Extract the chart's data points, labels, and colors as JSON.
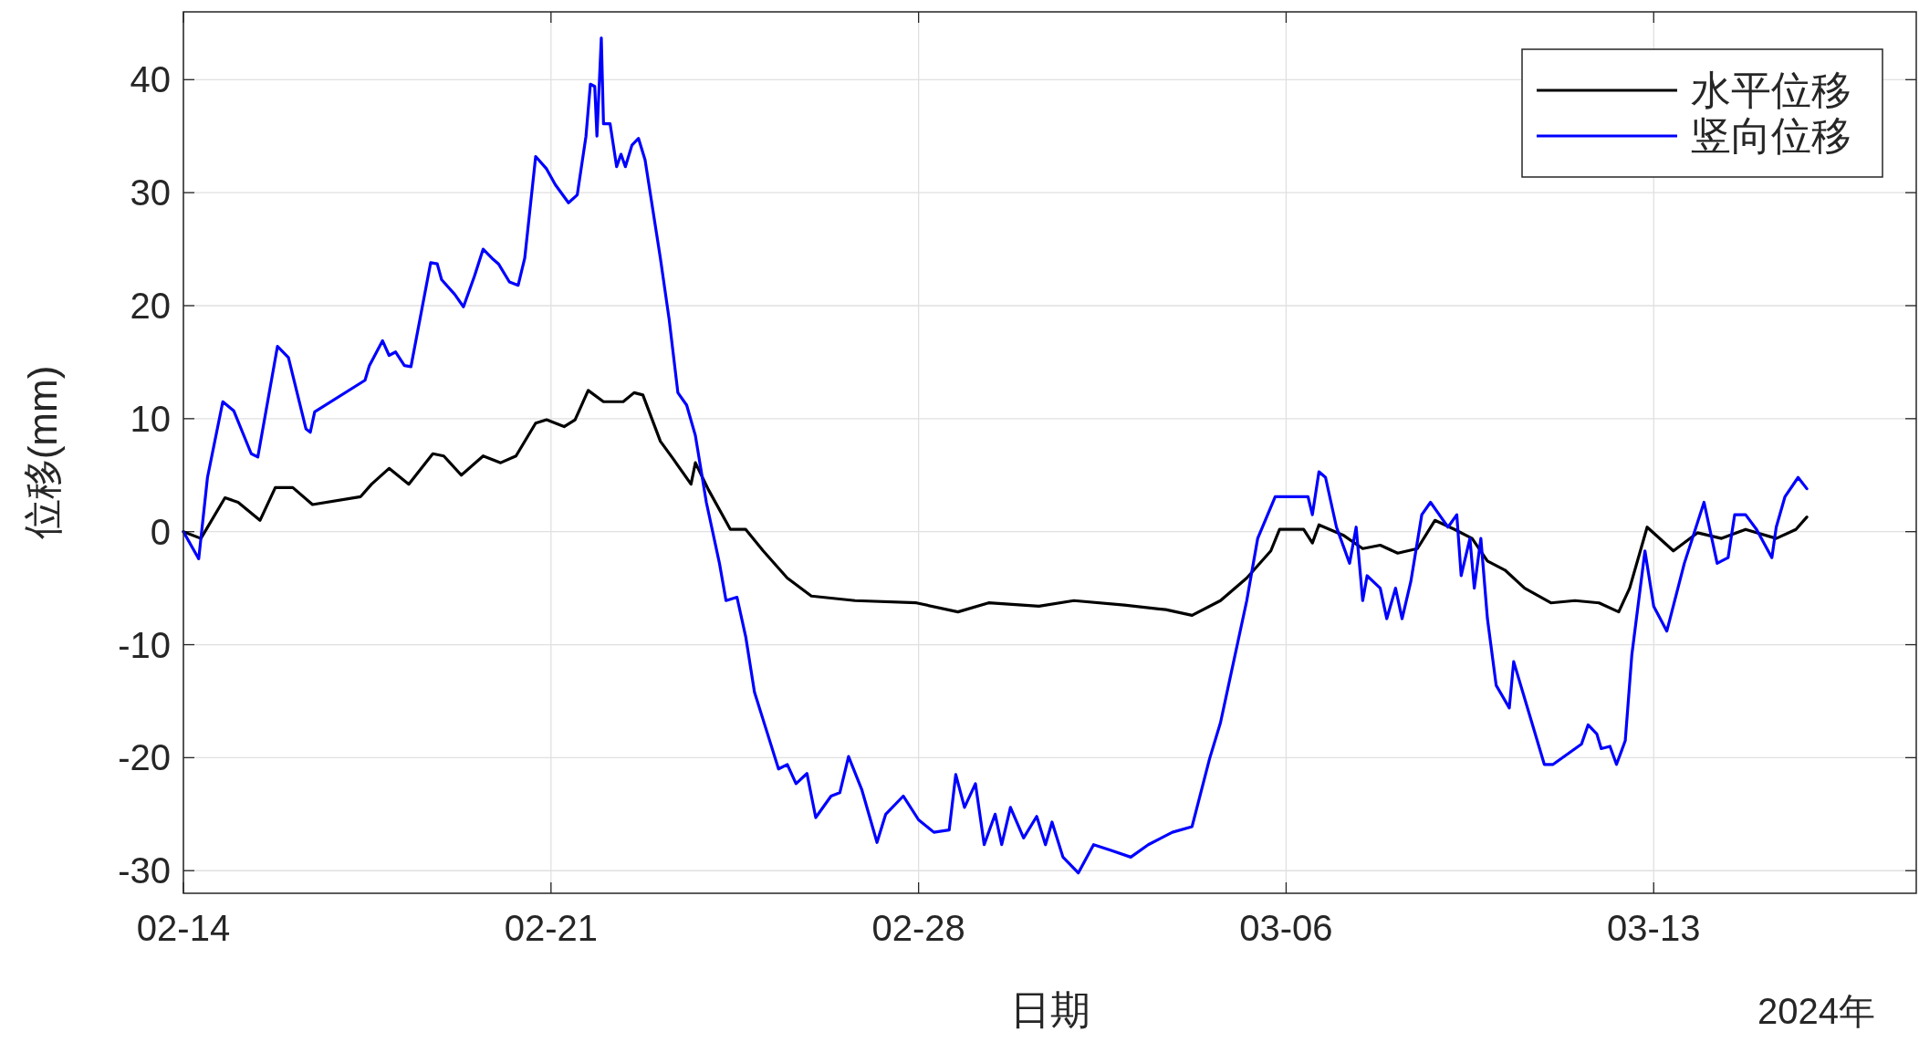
{
  "chart_data": {
    "type": "line",
    "xlabel": "日期",
    "ylabel": "位移(mm)",
    "annotations": [
      "2024年"
    ],
    "xlim": [
      "2024-02-14",
      "2024-03-18"
    ],
    "xticks": [
      {
        "value": "2024-02-14",
        "label": "02-14"
      },
      {
        "value": "2024-02-21",
        "label": "02-21"
      },
      {
        "value": "2024-02-28",
        "label": "02-28"
      },
      {
        "value": "2024-03-06",
        "label": "03-06"
      },
      {
        "value": "2024-03-13",
        "label": "03-13"
      }
    ],
    "ylim": [
      -32,
      46
    ],
    "yticks": [
      -30,
      -20,
      -10,
      0,
      10,
      20,
      30,
      40
    ],
    "grid": true,
    "legend": "top right",
    "series": [
      {
        "name": "水平位移",
        "color": "#000000",
        "x": [
          "2024-02-14T00:00",
          "2024-02-14T08:00",
          "2024-02-14T19:00",
          "2024-02-15T01:00",
          "2024-02-15T11:00",
          "2024-02-15T18:00",
          "2024-02-16T02:00",
          "2024-02-16T11:00",
          "2024-02-17T09:00",
          "2024-02-17T14:00",
          "2024-02-17T22:00",
          "2024-02-18T07:00",
          "2024-02-18T18:00",
          "2024-02-18T23:00",
          "2024-02-19T07:00",
          "2024-02-19T17:00",
          "2024-02-20T01:00",
          "2024-02-20T08:00",
          "2024-02-20T17:00",
          "2024-02-20T22:00",
          "2024-02-21T06:00",
          "2024-02-21T11:00",
          "2024-02-21T17:00",
          "2024-02-22T00:00",
          "2024-02-22T09:00",
          "2024-02-22T14:00",
          "2024-02-22T18:00",
          "2024-02-23T02:00",
          "2024-02-23T08:00",
          "2024-02-23T16:00",
          "2024-02-23T18:00",
          "2024-02-24T00:00",
          "2024-02-24T10:00",
          "2024-02-24T17:00",
          "2024-02-25T01:00",
          "2024-02-25T12:00",
          "2024-02-25T23:00",
          "2024-02-26T19:00",
          "2024-02-27T23:00",
          "2024-02-28T18:00",
          "2024-02-29T08:00",
          "2024-03-01T07:00",
          "2024-03-01T23:00",
          "2024-03-02T22:00",
          "2024-03-03T17:00",
          "2024-03-04T05:00",
          "2024-03-04T18:00",
          "2024-03-05T06:00",
          "2024-03-05T17:00",
          "2024-03-05T21:00",
          "2024-03-06T08:00",
          "2024-03-06T12:00",
          "2024-03-06T15:00",
          "2024-03-07T02:00",
          "2024-03-07T11:00",
          "2024-03-07T19:00",
          "2024-03-08T03:00",
          "2024-03-08T12:00",
          "2024-03-08T20:00",
          "2024-03-09T05:00",
          "2024-03-09T13:00",
          "2024-03-09T20:00",
          "2024-03-10T04:00",
          "2024-03-10T13:00",
          "2024-03-11T01:00",
          "2024-03-11T12:00",
          "2024-03-11T23:00",
          "2024-03-12T08:00",
          "2024-03-12T13:00",
          "2024-03-12T21:00",
          "2024-03-13T09:00",
          "2024-03-13T20:00",
          "2024-03-14T07:00",
          "2024-03-14T18:00",
          "2024-03-15T08:00",
          "2024-03-15T17:00",
          "2024-03-15T22:00"
        ],
        "values": [
          0,
          -0.6,
          3.0,
          2.6,
          1.0,
          3.9,
          3.9,
          2.4,
          3.1,
          4.2,
          5.6,
          4.2,
          6.9,
          6.7,
          5.0,
          6.7,
          6.1,
          6.7,
          9.6,
          9.9,
          9.3,
          9.9,
          12.5,
          11.5,
          11.5,
          12.3,
          12.1,
          8.0,
          6.4,
          4.2,
          6.1,
          3.7,
          0.2,
          0.2,
          -1.7,
          -4.1,
          -5.7,
          -6.1,
          -6.3,
          -7.1,
          -6.3,
          -6.6,
          -6.1,
          -6.5,
          -6.9,
          -7.4,
          -6.1,
          -4.1,
          -1.7,
          0.2,
          0.2,
          -1.0,
          0.6,
          -0.3,
          -1.5,
          -1.2,
          -1.9,
          -1.5,
          1.0,
          0.2,
          -0.6,
          -2.6,
          -3.4,
          -5.0,
          -6.3,
          -6.1,
          -6.3,
          -7.1,
          -5.0,
          0.4,
          -1.7,
          -0.1,
          -0.6,
          0.2,
          -0.6,
          0.2,
          1.3
        ]
      },
      {
        "name": "竖向位移",
        "color": "#0000ff",
        "x": [
          "2024-02-14T00:00",
          "2024-02-14T07:00",
          "2024-02-14T11:00",
          "2024-02-14T18:00",
          "2024-02-14T23:00",
          "2024-02-15T07:00",
          "2024-02-15T10:00",
          "2024-02-15T19:00",
          "2024-02-16T00:00",
          "2024-02-16T08:00",
          "2024-02-16T10:00",
          "2024-02-16T12:00",
          "2024-02-17T11:00",
          "2024-02-17T13:00",
          "2024-02-17T19:00",
          "2024-02-17T22:00",
          "2024-02-18T01:00",
          "2024-02-18T05:00",
          "2024-02-18T08:00",
          "2024-02-18T17:00",
          "2024-02-18T20:00",
          "2024-02-18T22:00",
          "2024-02-19T04:00",
          "2024-02-19T08:00",
          "2024-02-19T13:00",
          "2024-02-19T17:00",
          "2024-02-19T21:00",
          "2024-02-20T00:00",
          "2024-02-20T05:00",
          "2024-02-20T09:00",
          "2024-02-20T12:00",
          "2024-02-20T17:00",
          "2024-02-20T22:00",
          "2024-02-21T02:00",
          "2024-02-21T08:00",
          "2024-02-21T12:00",
          "2024-02-21T16:00",
          "2024-02-21T18:00",
          "2024-02-21T20:00",
          "2024-02-21T21:00",
          "2024-02-21T23:00",
          "2024-02-22T00:00",
          "2024-02-22T03:00",
          "2024-02-22T06:00",
          "2024-02-22T08:00",
          "2024-02-22T10:00",
          "2024-02-22T13:00",
          "2024-02-22T16:00",
          "2024-02-22T19:00",
          "2024-02-23T02:00",
          "2024-02-23T06:00",
          "2024-02-23T10:00",
          "2024-02-23T14:00",
          "2024-02-23T18:00",
          "2024-02-23T23:00",
          "2024-02-24T05:00",
          "2024-02-24T08:00",
          "2024-02-24T13:00",
          "2024-02-24T17:00",
          "2024-02-24T21:00",
          "2024-02-25T03:00",
          "2024-02-25T08:00",
          "2024-02-25T12:00",
          "2024-02-25T16:00",
          "2024-02-25T21:00",
          "2024-02-26T01:00",
          "2024-02-26T08:00",
          "2024-02-26T12:00",
          "2024-02-26T16:00",
          "2024-02-26T22:00",
          "2024-02-27T05:00",
          "2024-02-27T09:00",
          "2024-02-27T17:00",
          "2024-02-28T00:00",
          "2024-02-28T07:00",
          "2024-02-28T14:00",
          "2024-02-28T17:00",
          "2024-02-28T21:00",
          "2024-02-29T02:00",
          "2024-02-29T06:00",
          "2024-02-29T11:00",
          "2024-02-29T14:00",
          "2024-02-29T18:00",
          "2024-03-01T00:00",
          "2024-03-01T06:00",
          "2024-03-01T10:00",
          "2024-03-01T13:00",
          "2024-03-01T18:00",
          "2024-03-02T01:00",
          "2024-03-02T08:00",
          "2024-03-02T16:00",
          "2024-03-03T01:00",
          "2024-03-03T09:00",
          "2024-03-03T20:00",
          "2024-03-04T05:00",
          "2024-03-04T13:00",
          "2024-03-04T18:00",
          "2024-03-05T00:00",
          "2024-03-05T06:00",
          "2024-03-05T11:00",
          "2024-03-05T19:00",
          "2024-03-06T10:00",
          "2024-03-06T12:00",
          "2024-03-06T15:00",
          "2024-03-06T18:00",
          "2024-03-06T23:00",
          "2024-03-07T05:00",
          "2024-03-07T08:00",
          "2024-03-07T11:00",
          "2024-03-07T13:00",
          "2024-03-07T19:00",
          "2024-03-07T22:00",
          "2024-03-08T02:00",
          "2024-03-08T05:00",
          "2024-03-08T09:00",
          "2024-03-08T14:00",
          "2024-03-08T18:00",
          "2024-03-08T22:00",
          "2024-03-09T02:00",
          "2024-03-09T06:00",
          "2024-03-09T08:00",
          "2024-03-09T12:00",
          "2024-03-09T14:00",
          "2024-03-09T17:00",
          "2024-03-09T20:00",
          "2024-03-10T00:00",
          "2024-03-10T06:00",
          "2024-03-10T08:00",
          "2024-03-10T22:00",
          "2024-03-11T02:00",
          "2024-03-11T15:00",
          "2024-03-11T18:00",
          "2024-03-11T22:00",
          "2024-03-12T00:00",
          "2024-03-12T04:00",
          "2024-03-12T07:00",
          "2024-03-12T11:00",
          "2024-03-12T14:00",
          "2024-03-12T20:00",
          "2024-03-13T00:00",
          "2024-03-13T06:00",
          "2024-03-13T14:00",
          "2024-03-13T23:00",
          "2024-03-14T05:00",
          "2024-03-14T10:00",
          "2024-03-14T13:00",
          "2024-03-14T18:00",
          "2024-03-14T23:00",
          "2024-03-15T06:00",
          "2024-03-15T08:00",
          "2024-03-15T12:00",
          "2024-03-15T18:00",
          "2024-03-15T22:00"
        ],
        "values": [
          0,
          -2.4,
          4.8,
          11.5,
          10.7,
          6.9,
          6.6,
          16.4,
          15.4,
          9.1,
          8.8,
          10.6,
          13.4,
          14.7,
          16.9,
          15.6,
          15.9,
          14.7,
          14.6,
          23.8,
          23.7,
          22.3,
          21.0,
          19.9,
          22.6,
          25.0,
          24.2,
          23.7,
          22.1,
          21.8,
          24.2,
          33.2,
          32.1,
          30.7,
          29.1,
          29.8,
          35.0,
          39.6,
          39.4,
          35.0,
          43.7,
          36.1,
          36.1,
          32.3,
          33.4,
          32.3,
          34.2,
          34.8,
          32.9,
          24.2,
          18.8,
          12.3,
          11.2,
          8.5,
          2.6,
          -2.8,
          -6.1,
          -5.8,
          -9.3,
          -14.2,
          -17.9,
          -21.0,
          -20.6,
          -22.3,
          -21.4,
          -25.3,
          -23.4,
          -23.1,
          -19.9,
          -22.8,
          -27.5,
          -25.0,
          -23.4,
          -25.5,
          -26.6,
          -26.4,
          -21.5,
          -24.4,
          -22.3,
          -27.7,
          -25.0,
          -27.7,
          -24.4,
          -27.1,
          -25.2,
          -27.7,
          -25.7,
          -28.8,
          -30.2,
          -27.7,
          -28.2,
          -28.8,
          -27.7,
          -26.6,
          -26.1,
          -20.1,
          -16.9,
          -11.5,
          -6.1,
          -0.6,
          3.1,
          3.1,
          1.5,
          5.3,
          4.8,
          0.4,
          -2.8,
          0.4,
          -6.1,
          -3.9,
          -5.0,
          -7.7,
          -5.0,
          -7.7,
          -4.4,
          1.5,
          2.6,
          1.5,
          0.4,
          1.5,
          -3.9,
          -0.6,
          -5.0,
          -0.6,
          -7.7,
          -13.6,
          -15.6,
          -11.5,
          -20.6,
          -20.6,
          -18.8,
          -17.1,
          -17.9,
          -19.2,
          -19.0,
          -20.6,
          -18.5,
          -10.9,
          -1.7,
          -6.6,
          -8.8,
          -2.8,
          2.6,
          -2.8,
          -2.3,
          1.5,
          1.5,
          0.2,
          -2.3,
          0.4,
          3.1,
          4.8,
          3.8
        ]
      }
    ]
  }
}
